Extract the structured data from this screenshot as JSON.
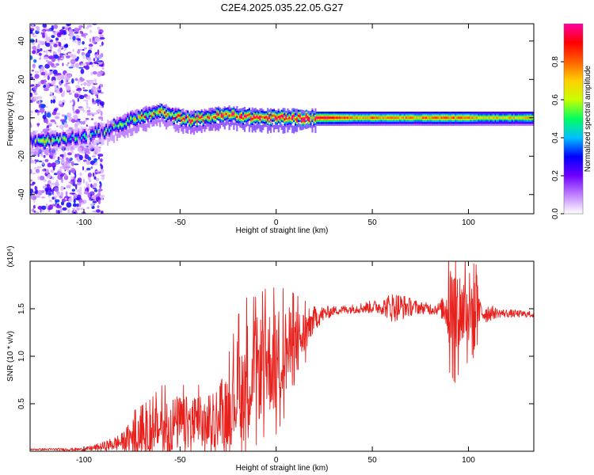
{
  "figure": {
    "title": "C2E4.2025.035.22.05.G27"
  },
  "chart_data": [
    {
      "type": "heatmap",
      "title": "C2E4.2025.035.22.05.G27",
      "xlabel": "Height of straight line (km)",
      "ylabel": "Frequency (Hz)",
      "xlim": [
        -128,
        134
      ],
      "ylim": [
        -50,
        49
      ],
      "x_ticks": [
        -100,
        -50,
        0,
        50,
        100
      ],
      "x_tick_labels": [
        "-100",
        "-50",
        "0",
        "50",
        "100"
      ],
      "y_ticks": [
        -40,
        -20,
        0,
        20,
        40
      ],
      "y_tick_labels": [
        "-40",
        "-20",
        "0",
        "20",
        "40"
      ],
      "colorbar": {
        "label": "Normalized spectral amplitude",
        "range": [
          0,
          1
        ],
        "ticks": [
          0,
          0.2,
          0.4,
          0.6,
          0.8
        ],
        "tick_labels": [
          "0.0",
          "0.2",
          "0.4",
          "0.6",
          "0.8"
        ],
        "colormap": [
          "#ffffff",
          "#c080ff",
          "#7000ff",
          "#0000ff",
          "#00c0ff",
          "#00ff60",
          "#c8ff00",
          "#ffd000",
          "#ff6000",
          "#ff0000",
          "#ff00a0"
        ]
      },
      "ridge_frequency": {
        "x": [
          -128,
          -120,
          -112,
          -104,
          -96,
          -90,
          -85,
          -80,
          -75,
          -70,
          -65,
          -60,
          -55,
          -50,
          -45,
          -40,
          -35,
          -30,
          -25,
          -20,
          -15,
          -10,
          -5,
          0,
          5,
          10,
          15,
          20,
          30,
          40,
          50,
          60,
          70,
          80,
          90,
          100,
          110,
          120,
          134
        ],
        "y": [
          -12,
          -12,
          -11,
          -10,
          -9,
          -7,
          -5,
          -3,
          -1,
          0.5,
          2,
          3,
          1,
          0,
          -1,
          -0.5,
          0.5,
          1,
          1.5,
          1,
          0.5,
          0.2,
          0,
          0,
          0,
          0,
          0,
          0,
          0,
          0,
          0,
          0,
          0,
          0,
          0,
          0,
          0,
          0,
          0
        ],
        "amplitude": [
          0.3,
          0.55,
          0.35,
          0.3,
          0.3,
          0.35,
          0.5,
          0.6,
          0.6,
          0.65,
          0.65,
          0.7,
          0.6,
          0.75,
          0.75,
          0.8,
          0.8,
          0.85,
          0.9,
          0.9,
          0.9,
          0.95,
          0.9,
          0.95,
          0.95,
          0.95,
          0.95,
          0.9,
          0.85,
          0.7,
          0.75,
          0.7,
          0.7,
          0.75,
          0.75,
          0.7,
          0.65,
          0.65,
          0.65
        ]
      },
      "noise_region_x": [
        -128,
        -90
      ]
    },
    {
      "type": "line",
      "xlabel": "Height of straight line (km)",
      "ylabel": "SNR (10 * v/v)",
      "y_exponent_label": "(x10⁴)",
      "xlim": [
        -128,
        134
      ],
      "ylim": [
        0,
        2.0
      ],
      "x_ticks": [
        -100,
        -50,
        0,
        50,
        100
      ],
      "x_tick_labels": [
        "-100",
        "-50",
        "0",
        "50",
        "100"
      ],
      "y_ticks": [
        0.5,
        1.0,
        1.5
      ],
      "y_tick_labels": [
        "0.5",
        "1.0",
        "1.5"
      ],
      "series": [
        {
          "color": "#e8201c",
          "envelope_x": [
            -128,
            -100,
            -90,
            -80,
            -75,
            -70,
            -65,
            -60,
            -55,
            -50,
            -45,
            -40,
            -35,
            -30,
            -25,
            -20,
            -15,
            -10,
            -5,
            0,
            5,
            10,
            15,
            20,
            25,
            30,
            40,
            50,
            55,
            60,
            70,
            80,
            85,
            90,
            95,
            100,
            103,
            110,
            120,
            134
          ],
          "envelope_y": [
            0.02,
            0.02,
            0.05,
            0.1,
            0.15,
            0.18,
            0.22,
            0.25,
            0.28,
            0.3,
            0.3,
            0.3,
            0.25,
            0.3,
            0.45,
            0.65,
            0.75,
            0.85,
            0.95,
            0.95,
            1.05,
            1.1,
            1.25,
            1.4,
            1.45,
            1.48,
            1.5,
            1.52,
            1.52,
            1.52,
            1.52,
            1.5,
            1.5,
            1.5,
            1.48,
            1.48,
            1.46,
            1.46,
            1.45,
            1.44
          ],
          "noise_x": [
            -128,
            -100,
            -90,
            -80,
            -75,
            -65,
            -60,
            -50,
            -40,
            -35,
            -30,
            -25,
            -20,
            -15,
            -10,
            -5,
            0,
            5,
            10,
            15,
            20,
            25,
            30,
            40,
            55,
            60,
            65,
            70,
            75,
            85,
            88,
            90,
            93,
            97,
            100,
            103,
            105,
            115,
            134
          ],
          "noise_amp": [
            0.005,
            0.01,
            0.03,
            0.06,
            0.12,
            0.15,
            0.2,
            0.18,
            0.18,
            0.15,
            0.15,
            0.25,
            0.35,
            0.4,
            0.35,
            0.35,
            0.35,
            0.3,
            0.25,
            0.15,
            0.08,
            0.05,
            0.03,
            0.03,
            0.05,
            0.1,
            0.09,
            0.06,
            0.04,
            0.04,
            0.12,
            0.3,
            0.35,
            0.25,
            0.25,
            0.35,
            0.1,
            0.03,
            0.02
          ]
        }
      ]
    }
  ]
}
